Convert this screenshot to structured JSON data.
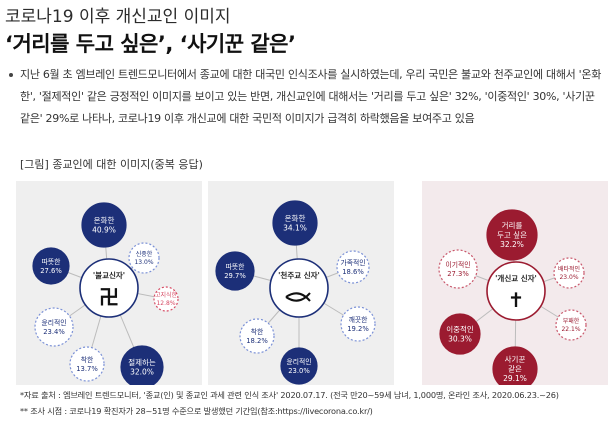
{
  "header": {
    "top_title": "코로나19 이후 개신교인 이미지",
    "main_title": "‘거리를 두고 싶은’, ‘사기꾼 같은’"
  },
  "body": {
    "paragraph": "지난 6월 초 엠브레인 트렌드모니터에서 종교에 대한 대국민 인식조사를 실시하였는데, 우리 국민은 불교와 천주교인에 대해서 '온화한', '절제적인' 같은 긍정적인 이미지를 보이고 있는 반면, 개신교인에 대해서는 '거리를 두고 싶은' 32%, '이중적인' 30%, '사기꾼같은' 29%로 나타나, 코로나19 이후 개신교에 대한 국민적 이미지가 급격히 하락했음을 보여주고 있음"
  },
  "figure": {
    "caption": "[그림] 종교인에 대한 이미지(중복 응답)",
    "panels": [
      {
        "center": "'불교신자'",
        "symbol": "卍",
        "theme": "buddhism",
        "bubbles": [
          {
            "label": "온화한",
            "value": "40.9%",
            "style": "dark"
          },
          {
            "label": "따뜻한",
            "value": "27.6%",
            "style": "dark"
          },
          {
            "label": "신중한",
            "value": "13.0%",
            "style": "light"
          },
          {
            "label": "고지식한",
            "value": "12.8%",
            "style": "accent"
          },
          {
            "label": "윤리적인",
            "value": "23.4%",
            "style": "light"
          },
          {
            "label": "착한",
            "value": "13.7%",
            "style": "light"
          },
          {
            "label": "절제하는",
            "value": "32.0%",
            "style": "dark"
          }
        ]
      },
      {
        "center": "'천주교 신자'",
        "symbol": "fish",
        "theme": "catholic",
        "bubbles": [
          {
            "label": "온화한",
            "value": "34.1%",
            "style": "dark"
          },
          {
            "label": "따뜻한",
            "value": "29.7%",
            "style": "dark"
          },
          {
            "label": "가족적인",
            "value": "18.6%",
            "style": "light"
          },
          {
            "label": "깨끗한",
            "value": "19.2%",
            "style": "light"
          },
          {
            "label": "착한",
            "value": "18.2%",
            "style": "light"
          },
          {
            "label": "윤리적인",
            "value": "23.0%",
            "style": "dark"
          }
        ]
      },
      {
        "center": "'개신교 신자'",
        "symbol": "✝",
        "theme": "protestant",
        "bubbles": [
          {
            "label": "거리를|두고 싶은",
            "value": "32.2%",
            "style": "dark"
          },
          {
            "label": "이기적인",
            "value": "27.3%",
            "style": "light"
          },
          {
            "label": "배타적인",
            "value": "23.0%",
            "style": "light"
          },
          {
            "label": "부패한",
            "value": "22.1%",
            "style": "light"
          },
          {
            "label": "이중적인",
            "value": "30.3%",
            "style": "dark"
          },
          {
            "label": "사기꾼|같은",
            "value": "29.1%",
            "style": "dark"
          }
        ]
      }
    ]
  },
  "sources": {
    "line1": "*자료 출처 : 엠브레인 트렌드모니터, '종교(인) 및 종교인 과세 관련 인식 조사' 2020.07.17. (전국 만20~59세 남녀, 1,000명, 온라인 조사, 2020.06.23.~26)",
    "line2": "** 조사 시점 : 코로나19 확진자가 28~51명 수준으로 발생했던 기간임(참조:https://livecorona.co.kr/)"
  },
  "colors": {
    "navy": "#1c2f78",
    "blue_light": "#3f63c4",
    "dashed_blue": "#7a90d6",
    "red_dark": "#9b1b30",
    "red_light": "#c8566a",
    "accent": "#d64a63",
    "connector": "#bcbcbc"
  }
}
